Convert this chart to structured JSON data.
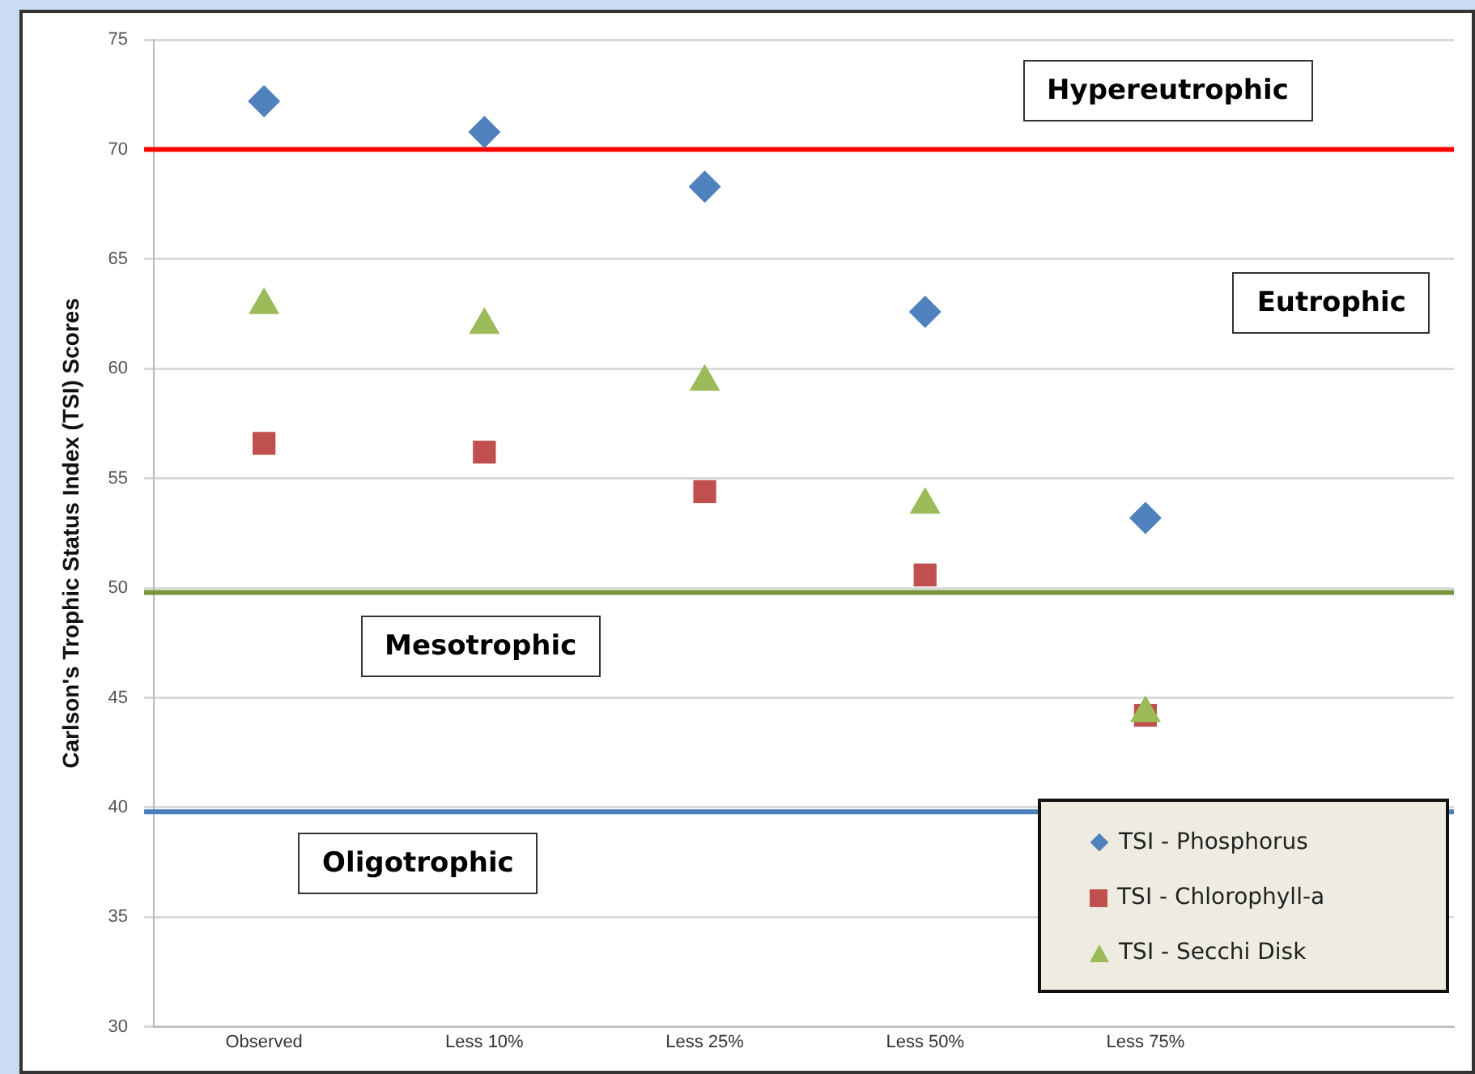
{
  "chart_data": {
    "type": "scatter",
    "ylabel": "Carlson's Trophic Status Index (TSI) Scores",
    "categories": [
      "Observed",
      "Less 10%",
      "Less 25%",
      "Less 50%",
      "Less 75%"
    ],
    "series": [
      {
        "name": "TSI - Phosphorus",
        "color": "#4f81bd",
        "marker": "diamond",
        "values": [
          72.2,
          70.8,
          68.3,
          62.6,
          53.2
        ]
      },
      {
        "name": "TSI - Chlorophyll-a",
        "color": "#c0504d",
        "marker": "square",
        "values": [
          56.6,
          56.2,
          54.4,
          50.6,
          44.2
        ]
      },
      {
        "name": "TSI - Secchi Disk",
        "color": "#9bbb59",
        "marker": "triangle",
        "values": [
          62.9,
          62.0,
          59.4,
          53.8,
          44.3
        ]
      }
    ],
    "ylim": [
      30,
      75
    ],
    "yticks": [
      30,
      35,
      40,
      45,
      50,
      55,
      60,
      65,
      70,
      75
    ],
    "grid": "y",
    "legend": "bottom right",
    "ref_lines": [
      {
        "axis": "y",
        "value": 70,
        "color": "#ff0000"
      },
      {
        "axis": "y",
        "value": 49.8,
        "color": "#77933c"
      },
      {
        "axis": "y",
        "value": 39.8,
        "color": "#4a7ebb"
      }
    ],
    "annotations": [
      "Hypereutrophic",
      "Eutrophic",
      "Mesotrophic",
      "Oligotrophic"
    ]
  }
}
